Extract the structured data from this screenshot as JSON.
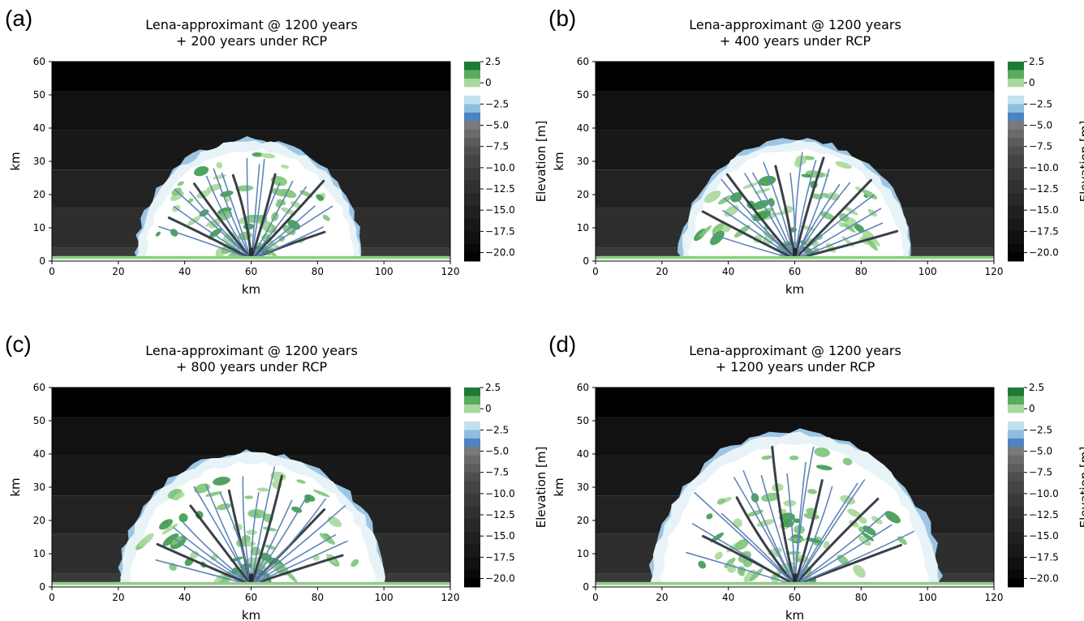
{
  "figure": {
    "colorbar_label": "Elevation [m]",
    "colorbar_ticks": [
      "2.5",
      "0",
      "−2.5",
      "−5.0",
      "−7.5",
      "−10.0",
      "−12.5",
      "−15.0",
      "−17.5",
      "−20.0"
    ],
    "colorbar_tick_values": [
      2.5,
      0,
      -2.5,
      -5,
      -7.5,
      -10,
      -12.5,
      -15,
      -17.5,
      -20
    ]
  },
  "chart_data": [
    {
      "type": "heatmap",
      "label": "(a)",
      "title_line1": "Lena-approximant @ 1200 years",
      "title_line2": "+ 200 years under RCP",
      "xlabel": "km",
      "ylabel": "km",
      "xlim": [
        0,
        120
      ],
      "ylim": [
        0,
        60
      ],
      "xticks": [
        0,
        20,
        40,
        60,
        80,
        100,
        120
      ],
      "yticks": [
        0,
        10,
        20,
        30,
        40,
        50,
        60
      ],
      "grid": false,
      "colorbar": {
        "label": "Elevation [m]",
        "range": [
          -20,
          2.5
        ]
      },
      "delta_extent_km": {
        "x_left": 26,
        "x_right": 93,
        "apex_y": 36
      }
    },
    {
      "type": "heatmap",
      "label": "(b)",
      "title_line1": "Lena-approximant @ 1200 years",
      "title_line2": "+ 400 years under RCP",
      "xlabel": "km",
      "ylabel": "km",
      "xlim": [
        0,
        120
      ],
      "ylim": [
        0,
        60
      ],
      "xticks": [
        0,
        20,
        40,
        60,
        80,
        100,
        120
      ],
      "yticks": [
        0,
        10,
        20,
        30,
        40,
        50,
        60
      ],
      "grid": false,
      "colorbar": {
        "label": "Elevation [m]",
        "range": [
          -20,
          2.5
        ]
      },
      "delta_extent_km": {
        "x_left": 26,
        "x_right": 95,
        "apex_y": 36
      }
    },
    {
      "type": "heatmap",
      "label": "(c)",
      "title_line1": "Lena-approximant @ 1200 years",
      "title_line2": "+ 800 years under RCP",
      "xlabel": "km",
      "ylabel": "km",
      "xlim": [
        0,
        120
      ],
      "ylim": [
        0,
        60
      ],
      "xticks": [
        0,
        20,
        40,
        60,
        80,
        100,
        120
      ],
      "yticks": [
        0,
        10,
        20,
        30,
        40,
        50,
        60
      ],
      "grid": false,
      "colorbar": {
        "label": "Elevation [m]",
        "range": [
          -20,
          2.5
        ]
      },
      "delta_extent_km": {
        "x_left": 21,
        "x_right": 100,
        "apex_y": 40
      }
    },
    {
      "type": "heatmap",
      "label": "(d)",
      "title_line1": "Lena-approximant @ 1200 years",
      "title_line2": "+ 1200 years under RCP",
      "xlabel": "km",
      "ylabel": "km",
      "xlim": [
        0,
        120
      ],
      "ylim": [
        0,
        60
      ],
      "xticks": [
        0,
        20,
        40,
        60,
        80,
        100,
        120
      ],
      "yticks": [
        0,
        10,
        20,
        30,
        40,
        50,
        60
      ],
      "grid": false,
      "colorbar": {
        "label": "Elevation [m]",
        "range": [
          -20,
          2.5
        ]
      },
      "delta_extent_km": {
        "x_left": 17,
        "x_right": 103,
        "apex_y": 46
      }
    }
  ]
}
